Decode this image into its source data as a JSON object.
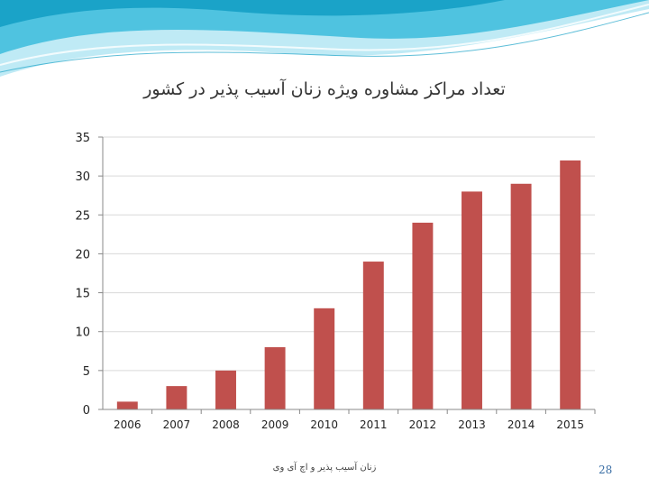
{
  "slide": {
    "footer": "زنان آسیب پذیر و اچ آی وی",
    "page_number": "28"
  },
  "colors": {
    "bar": "#c0504d",
    "axis": "#888888",
    "grid": "#d9d9d9",
    "banner_light": "#bfeaf5",
    "banner_main": "#4fc3e0",
    "banner_dark": "#1aa3c8"
  },
  "chart_data": {
    "type": "bar",
    "title": "تعداد مراکز مشاوره ویژه زنان آسیب پذیر در کشور",
    "categories": [
      "2006",
      "2007",
      "2008",
      "2009",
      "2010",
      "2011",
      "2012",
      "2013",
      "2014",
      "2015"
    ],
    "values": [
      1,
      3,
      5,
      8,
      13,
      19,
      24,
      28,
      29,
      32
    ],
    "ylim": [
      0,
      35
    ],
    "yticks": [
      "0",
      "5",
      "10",
      "15",
      "20",
      "25",
      "30",
      "35"
    ],
    "xlabel": "",
    "ylabel": "",
    "grid": true,
    "legend": "none"
  }
}
